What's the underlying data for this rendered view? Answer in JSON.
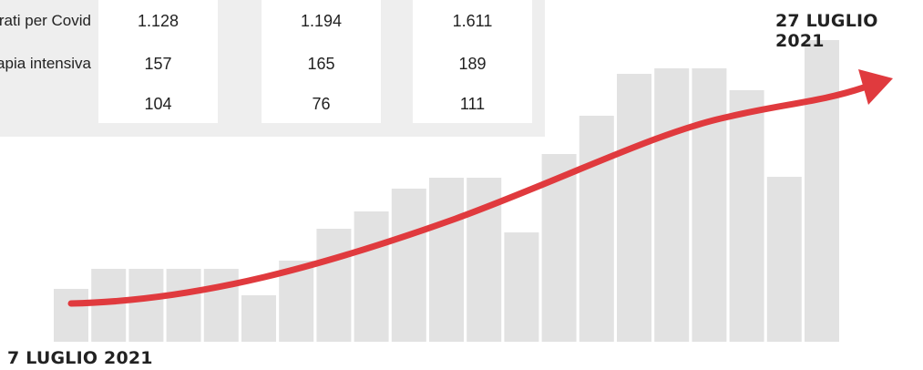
{
  "table": {
    "rows": [
      {
        "label": "Ricoverati per Covid",
        "values": [
          "1.128",
          "1.194",
          "1.611"
        ]
      },
      {
        "label": "Terapia intensiva",
        "values": [
          "157",
          "165",
          "189"
        ]
      },
      {
        "label": "",
        "values": [
          "104",
          "76",
          "111"
        ]
      }
    ]
  },
  "chart_data": {
    "type": "bar",
    "title": "",
    "start_label": "7 LUGLIO 2021",
    "end_label": "27 LUGLIO 2021",
    "categories": [
      "7 LUGLIO 2021",
      "",
      "",
      "",
      "",
      "",
      "",
      "",
      "",
      "",
      "",
      "",
      "",
      "",
      "",
      "",
      "",
      "",
      "",
      "",
      "27 LUGLIO 2021"
    ],
    "values": [
      58,
      80,
      80,
      80,
      80,
      51,
      89,
      124,
      143,
      168,
      180,
      180,
      120,
      206,
      248,
      294,
      300,
      300,
      276,
      181,
      331
    ],
    "trend_arrow": {
      "color": "#e03a3e",
      "direction": "increasing"
    },
    "bar_color": "#e2e2e2",
    "grid": false,
    "ylim": [
      0,
      340
    ]
  },
  "colors": {
    "panel": "#eeeeee",
    "bar": "#e2e2e2",
    "arrow": "#e03a3e"
  }
}
